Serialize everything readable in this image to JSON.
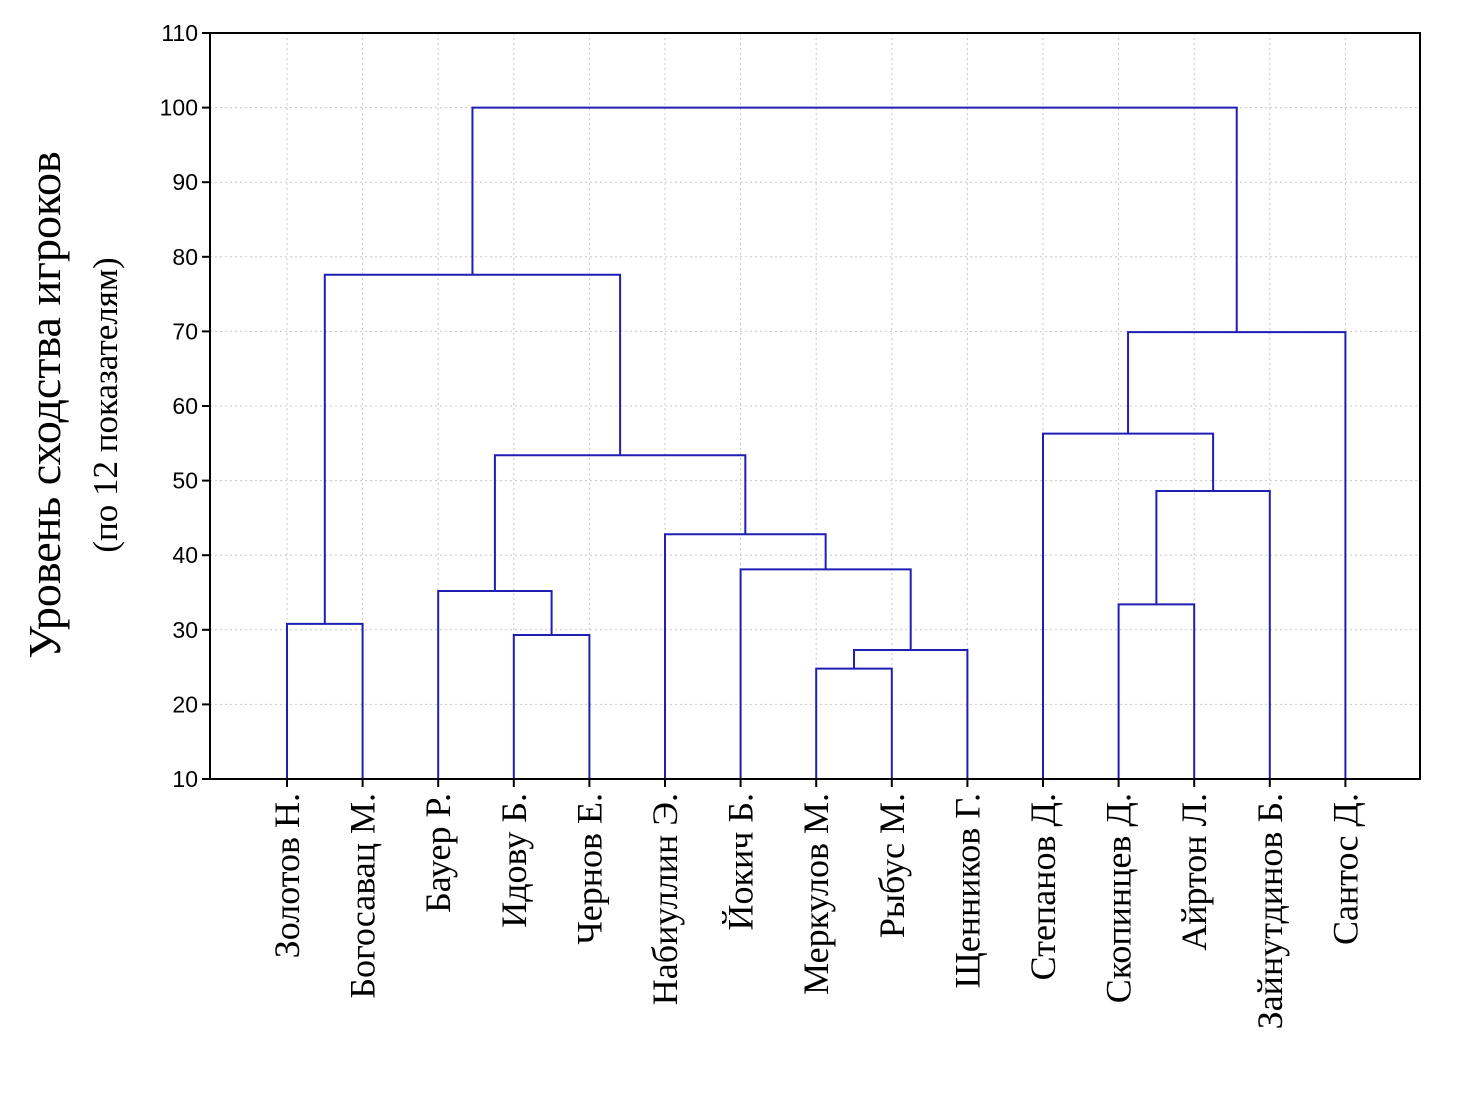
{
  "chart_data": {
    "type": "dendrogram",
    "ylabel": "Уровень сходства игроков",
    "ylabel_sub": "(по 12 показателям)",
    "ylim": [
      10,
      110
    ],
    "yticks": [
      10,
      20,
      30,
      40,
      50,
      60,
      70,
      80,
      90,
      100,
      110
    ],
    "grid": true,
    "leaves": [
      "Золотов Н.",
      "Богосавац М.",
      "Бауер Р.",
      "Идову Б.",
      "Чернов Е.",
      "Набиуллин Э.",
      "Йокич Б.",
      "Меркулов М.",
      "Рыбус М.",
      "Щенников Г.",
      "Степанов Д.",
      "Скопинцев Д.",
      "Айртон Л.",
      "Зайнутдинов Б.",
      "Сантос Д."
    ],
    "merges": [
      {
        "id": "m1",
        "left": "L0",
        "right": "L1",
        "height": 30.8
      },
      {
        "id": "m2",
        "left": "L3",
        "right": "L4",
        "height": 29.3
      },
      {
        "id": "m3",
        "left": "L2",
        "right": "m2",
        "height": 35.2
      },
      {
        "id": "m4",
        "left": "L7",
        "right": "L8",
        "height": 24.8
      },
      {
        "id": "m5",
        "left": "m4",
        "right": "L9",
        "height": 27.3
      },
      {
        "id": "m6",
        "left": "L6",
        "right": "m5",
        "height": 38.1
      },
      {
        "id": "m7",
        "left": "L5",
        "right": "m6",
        "height": 42.8
      },
      {
        "id": "m8",
        "left": "m3",
        "right": "m7",
        "height": 53.4
      },
      {
        "id": "m9",
        "left": "m1",
        "right": "m8",
        "height": 77.6
      },
      {
        "id": "m10",
        "left": "L11",
        "right": "L12",
        "height": 33.4
      },
      {
        "id": "m11",
        "left": "m10",
        "right": "L13",
        "height": 48.6
      },
      {
        "id": "m12",
        "left": "L10",
        "right": "m11",
        "height": 56.3
      },
      {
        "id": "m13",
        "left": "m12",
        "right": "L14",
        "height": 69.9
      },
      {
        "id": "m14",
        "left": "m9",
        "right": "m13",
        "height": 100.0
      }
    ],
    "line_color": "#1f1fb4",
    "grid_color": "#c8c8c8"
  }
}
